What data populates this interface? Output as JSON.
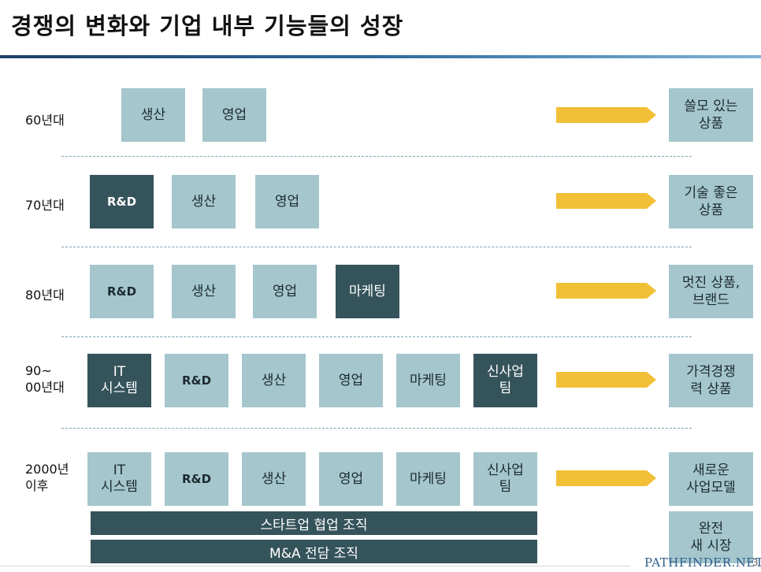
{
  "title": "경쟁의 변화와 기업 내부 기능들의 성장",
  "rows": [
    {
      "era": "60년대",
      "boxes": [
        "생산",
        "영업"
      ],
      "result": "쓸모 있는\n상품"
    },
    {
      "era": "70년대",
      "boxes": [
        "R&D",
        "생산",
        "영업"
      ],
      "result": "기술 좋은\n상품"
    },
    {
      "era": "80년대",
      "boxes": [
        "R&D",
        "생산",
        "영업",
        "마케팅"
      ],
      "result": "멋진 상품,\n브랜드"
    },
    {
      "era": "90~\n00년대",
      "boxes": [
        "IT\n시스템",
        "R&D",
        "생산",
        "영업",
        "마케팅",
        "신사업\n팀"
      ],
      "result": "가격경쟁\n력 상품"
    },
    {
      "era": "2000년\n이후",
      "boxes": [
        "IT\n시스템",
        "R&D",
        "생산",
        "영업",
        "마케팅",
        "신사업\n팀"
      ],
      "result": "새로운\n사업모델"
    }
  ],
  "org_bars": [
    "스타트업 협업 조직",
    "M&A 전담 조직"
  ],
  "final_result": "완전\n새 시장",
  "footer": {
    "logo": "PATHFINDER.NET",
    "page": "3"
  },
  "colors": {
    "dark_box": "#35535a",
    "light_box": "#a5c6cd",
    "arrow": "#f2c037"
  }
}
